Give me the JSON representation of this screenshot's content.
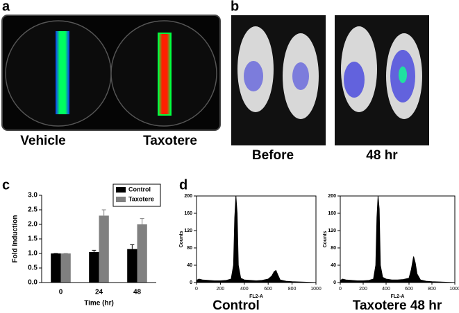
{
  "panels": {
    "a": {
      "label": "a",
      "captions": [
        "Vehicle",
        "Taxotere"
      ]
    },
    "b": {
      "label": "b",
      "captions": [
        "Before",
        "48 hr"
      ]
    }
  },
  "chart_data": [
    {
      "type": "bar",
      "panel_label": "c",
      "xlabel": "Time (hr)",
      "ylabel": "Fold Induction",
      "categories": [
        "0",
        "24",
        "48"
      ],
      "series": [
        {
          "name": "Control",
          "color": "#000000",
          "values": [
            1.0,
            1.05,
            1.15
          ],
          "errors": [
            0,
            0.06,
            0.15
          ]
        },
        {
          "name": "Taxotere",
          "color": "#808080",
          "values": [
            1.0,
            2.3,
            2.0
          ],
          "errors": [
            0,
            0.2,
            0.2
          ]
        }
      ],
      "ylim": [
        0,
        3.0
      ],
      "yticks": [
        {
          "value": 0,
          "label": "0.0"
        },
        {
          "value": 0.5,
          "label": "0.5"
        },
        {
          "value": 1.0,
          "label": "1.0"
        },
        {
          "value": 1.5,
          "label": "1.5"
        },
        {
          "value": 2.0,
          "label": "2.0"
        },
        {
          "value": 2.5,
          "label": "2.5"
        },
        {
          "value": 3.0,
          "label": "3.0"
        }
      ],
      "legend": "top-right"
    },
    {
      "type": "area",
      "panel_label": "d",
      "caption": "Control",
      "xlabel": "FL2-A",
      "ylabel": "Counts",
      "color": "#000000",
      "x": [
        0,
        20,
        50,
        100,
        150,
        200,
        250,
        290,
        310,
        320,
        330,
        340,
        350,
        370,
        400,
        450,
        500,
        550,
        600,
        630,
        650,
        665,
        680,
        700,
        750,
        800,
        900,
        1000
      ],
      "values": [
        5,
        8,
        6,
        5,
        4,
        4,
        5,
        8,
        40,
        150,
        200,
        160,
        40,
        10,
        6,
        5,
        4,
        5,
        8,
        15,
        25,
        28,
        18,
        6,
        3,
        2,
        1,
        0
      ],
      "xlim": [
        0,
        1000
      ],
      "xticks": [
        0,
        200,
        400,
        600,
        800,
        1000
      ],
      "ylim": [
        0,
        200
      ],
      "yticks": [
        0,
        40,
        80,
        120,
        160,
        200
      ]
    },
    {
      "type": "area",
      "caption": "Taxotere 48 hr",
      "xlabel": "FL2-A",
      "ylabel": "Counts",
      "color": "#000000",
      "x": [
        0,
        20,
        50,
        100,
        150,
        200,
        250,
        290,
        310,
        320,
        330,
        340,
        350,
        370,
        400,
        450,
        500,
        550,
        600,
        620,
        640,
        655,
        670,
        700,
        750,
        800,
        900,
        1000
      ],
      "values": [
        5,
        8,
        6,
        5,
        4,
        4,
        5,
        8,
        40,
        150,
        200,
        170,
        40,
        12,
        8,
        6,
        6,
        7,
        10,
        30,
        60,
        45,
        20,
        6,
        3,
        2,
        1,
        0
      ],
      "xlim": [
        0,
        1000
      ],
      "xticks": [
        0,
        200,
        400,
        600,
        800,
        1000
      ],
      "ylim": [
        0,
        200
      ],
      "yticks": [
        0,
        40,
        80,
        120,
        160,
        200
      ]
    }
  ]
}
